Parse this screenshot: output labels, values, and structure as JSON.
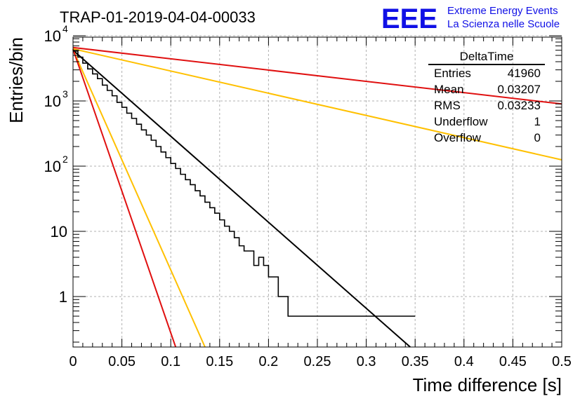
{
  "title": "TRAP-01-2019-04-04-00033",
  "logo": {
    "mark": "EEE",
    "line1": "Extreme Energy Events",
    "line2": "La Scienza nelle Scuole",
    "color": "#1010e6"
  },
  "stats": {
    "name": "DeltaTime",
    "rows": [
      {
        "label": "Entries",
        "value": "41960"
      },
      {
        "label": "Mean",
        "value": "0.03207"
      },
      {
        "label": "RMS",
        "value": "0.03233"
      },
      {
        "label": "Underflow",
        "value": "1"
      },
      {
        "label": "Overflow",
        "value": "0"
      }
    ]
  },
  "chart_data": {
    "type": "histogram",
    "xlabel": "Time difference [s]",
    "ylabel": "Entries/bin",
    "xlim": [
      0,
      0.5
    ],
    "ylim": [
      0.16,
      12000
    ],
    "yscale": "log",
    "grid": true,
    "x_ticks": [
      "0",
      "0.05",
      "0.1",
      "0.15",
      "0.2",
      "0.25",
      "0.3",
      "0.35",
      "0.4",
      "0.45",
      "0.5"
    ],
    "y_ticks": [
      {
        "value": 1,
        "label": "1"
      },
      {
        "value": 10,
        "label": "10"
      },
      {
        "value": 100,
        "label": "10",
        "exp": "2"
      },
      {
        "value": 1000,
        "label": "10",
        "exp": "3"
      },
      {
        "value": 10000,
        "label": "10",
        "exp": "4"
      }
    ],
    "histogram": {
      "name": "DeltaTime",
      "color": "#000000",
      "bin_width": 0.005,
      "x_start": 0.0,
      "counts": [
        5800,
        4700,
        3800,
        3100,
        2600,
        2200,
        1750,
        1450,
        1200,
        950,
        800,
        650,
        540,
        440,
        360,
        300,
        250,
        200,
        165,
        135,
        110,
        92,
        75,
        62,
        52,
        42,
        35,
        28,
        23,
        19,
        15,
        12,
        10,
        8,
        6,
        5,
        5,
        3,
        4,
        3,
        2,
        2,
        1,
        1,
        0.5,
        0.5,
        0.5,
        0.5,
        0.5,
        0.5,
        0.5,
        0.5,
        0.5,
        0.5,
        0.5,
        0.5,
        0.5,
        0.5,
        0.5,
        0.5,
        0.5,
        0.5,
        0.5,
        0.5,
        0.5,
        0.5,
        0.5,
        0.5,
        0.5,
        0.5
      ]
    },
    "fits": [
      {
        "color": "#000000",
        "x": [
          0.0,
          0.345
        ],
        "y": [
          6000,
          0.16
        ]
      },
      {
        "color": "#e01010",
        "x": [
          0.0,
          0.5
        ],
        "y": [
          6600,
          900
        ]
      },
      {
        "color": "#ffc000",
        "x": [
          0.0,
          0.5
        ],
        "y": [
          6300,
          125
        ]
      },
      {
        "color": "#ffc000",
        "x": [
          0.0,
          0.135
        ],
        "y": [
          6100,
          0.16
        ]
      },
      {
        "color": "#e01010",
        "x": [
          0.0,
          0.105
        ],
        "y": [
          6200,
          0.16
        ]
      }
    ]
  }
}
